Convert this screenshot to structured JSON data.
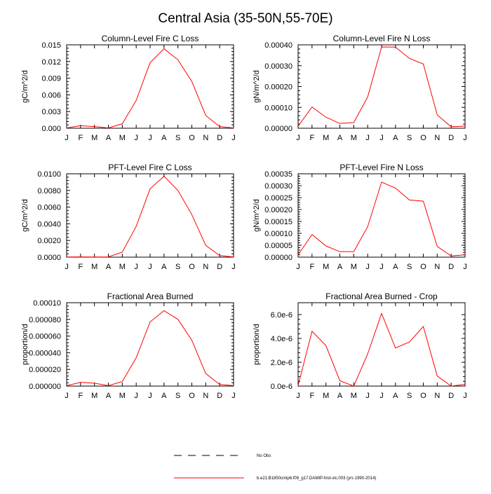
{
  "figure": {
    "title": "Central Asia (35-50N,55-70E)",
    "line_color": "#ff0000",
    "axis_color": "#000000"
  },
  "legend": {
    "entries": [
      {
        "label": "No Obs",
        "style": "dashed",
        "color": "#000000"
      },
      {
        "label": "b.e21.B1850cmip6.f09_g17.DAMIP-hist-vlc.003 (yrs 1990-2014)",
        "style": "solid",
        "color": "#ff0000"
      }
    ]
  },
  "chart_data": [
    {
      "type": "line",
      "title": "Column-Level Fire C Loss",
      "ylabel": "gC/m^2/d",
      "xlabel": "",
      "categories": [
        "J",
        "F",
        "M",
        "A",
        "M",
        "J",
        "J",
        "A",
        "S",
        "O",
        "N",
        "D",
        "J"
      ],
      "ylim": [
        0,
        0.015
      ],
      "yticks": [
        0,
        0.003,
        0.006,
        0.009,
        0.012,
        0.015
      ],
      "ytick_labels": [
        "0.000",
        "0.003",
        "0.006",
        "0.009",
        "0.012",
        "0.015"
      ],
      "series": [
        {
          "name": "b.e21.B1850cmip6.f09_g17.DAMIP-hist-vlc.003 (yrs 1990-2014)",
          "values": [
            5e-05,
            0.00045,
            0.0003,
            5e-05,
            0.0008,
            0.005,
            0.0118,
            0.0143,
            0.0123,
            0.0084,
            0.0023,
            0.0003,
            5e-05
          ]
        }
      ]
    },
    {
      "type": "line",
      "title": "Column-Level Fire N Loss",
      "ylabel": "gN/m^2/d",
      "xlabel": "",
      "categories": [
        "J",
        "F",
        "M",
        "A",
        "M",
        "J",
        "J",
        "A",
        "S",
        "O",
        "N",
        "D",
        "J"
      ],
      "ylim": [
        0,
        0.0004
      ],
      "yticks": [
        0,
        0.0001,
        0.0002,
        0.0003,
        0.0004
      ],
      "ytick_labels": [
        "0.00000",
        "0.00010",
        "0.00020",
        "0.00030",
        "0.00040"
      ],
      "series": [
        {
          "name": "b.e21.B1850cmip6.f09_g17.DAMIP-hist-vlc.003 (yrs 1990-2014)",
          "values": [
            1e-05,
            0.000102,
            5.3e-05,
            2.3e-05,
            2.7e-05,
            0.00015,
            0.00039,
            0.000389,
            0.000335,
            0.000308,
            6.4e-05,
            7e-06,
            1e-05
          ]
        }
      ]
    },
    {
      "type": "line",
      "title": "PFT-Level Fire C Loss",
      "ylabel": "gC/m^2/d",
      "xlabel": "",
      "categories": [
        "J",
        "F",
        "M",
        "A",
        "M",
        "J",
        "J",
        "A",
        "S",
        "O",
        "N",
        "D",
        "J"
      ],
      "ylim": [
        0,
        0.01
      ],
      "yticks": [
        0,
        0.002,
        0.004,
        0.006,
        0.008,
        0.01
      ],
      "ytick_labels": [
        "0.0000",
        "0.0020",
        "0.0040",
        "0.0060",
        "0.0080",
        "0.0100"
      ],
      "series": [
        {
          "name": "b.e21.B1850cmip6.f09_g17.DAMIP-hist-vlc.003 (yrs 1990-2014)",
          "values": [
            2e-05,
            3e-05,
            2e-05,
            3e-05,
            0.0006,
            0.0037,
            0.0082,
            0.0097,
            0.008,
            0.0051,
            0.0014,
            0.0002,
            2e-05
          ]
        }
      ]
    },
    {
      "type": "line",
      "title": "PFT-Level Fire N Loss",
      "ylabel": "gN/m^2/d",
      "xlabel": "",
      "categories": [
        "J",
        "F",
        "M",
        "A",
        "M",
        "J",
        "J",
        "A",
        "S",
        "O",
        "N",
        "D",
        "J"
      ],
      "ylim": [
        0,
        0.00035
      ],
      "yticks": [
        0,
        5e-05,
        0.0001,
        0.00015,
        0.0002,
        0.00025,
        0.0003,
        0.00035
      ],
      "ytick_labels": [
        "0.00000",
        "0.00005",
        "0.00010",
        "0.00015",
        "0.00020",
        "0.00025",
        "0.00030",
        "0.00035"
      ],
      "series": [
        {
          "name": "b.e21.B1850cmip6.f09_g17.DAMIP-hist-vlc.003 (yrs 1990-2014)",
          "values": [
            1e-05,
            9.5e-05,
            4.7e-05,
            2.3e-05,
            2.3e-05,
            0.000128,
            0.000315,
            0.00029,
            0.00024,
            0.000235,
            4.5e-05,
            5e-06,
            1e-05
          ]
        }
      ]
    },
    {
      "type": "line",
      "title": "Fractional Area Burned",
      "ylabel": "proportion/d",
      "xlabel": "",
      "categories": [
        "J",
        "F",
        "M",
        "A",
        "M",
        "J",
        "J",
        "A",
        "S",
        "O",
        "N",
        "D",
        "J"
      ],
      "ylim": [
        0,
        0.0001
      ],
      "yticks": [
        0,
        2e-05,
        4e-05,
        6e-05,
        8e-05,
        0.0001
      ],
      "ytick_labels": [
        "0.000000",
        "0.000020",
        "0.000040",
        "0.000060",
        "0.000080",
        "0.00010"
      ],
      "series": [
        {
          "name": "b.e21.B1850cmip6.f09_g17.DAMIP-hist-vlc.003 (yrs 1990-2014)",
          "values": [
            5e-07,
            4.5e-06,
            3.5e-06,
            5e-07,
            5.5e-06,
            3.4e-05,
            7.7e-05,
            9.05e-05,
            8e-05,
            5.5e-05,
            1.5e-05,
            2e-06,
            5e-07
          ]
        }
      ]
    },
    {
      "type": "line",
      "title": "Fractional Area Burned - Crop",
      "ylabel": "proportion/d",
      "xlabel": "",
      "categories": [
        "J",
        "F",
        "M",
        "A",
        "M",
        "J",
        "J",
        "A",
        "S",
        "O",
        "N",
        "D",
        "J"
      ],
      "ylim": [
        0,
        7e-06
      ],
      "yticks": [
        0,
        2e-06,
        4e-06,
        6e-06
      ],
      "ytick_labels": [
        "0.0e-6",
        "2.0e-6",
        "4.0e-6",
        "6.0e-6"
      ],
      "series": [
        {
          "name": "b.e21.B1850cmip6.f09_g17.DAMIP-hist-vlc.003 (yrs 1990-2014)",
          "values": [
            5e-08,
            4.6e-06,
            3.4e-06,
            4.5e-07,
            0.0,
            2.7e-06,
            6.1e-06,
            3.2e-06,
            3.7e-06,
            5e-06,
            8.5e-07,
            0.0,
            1.5e-07
          ]
        }
      ]
    }
  ]
}
